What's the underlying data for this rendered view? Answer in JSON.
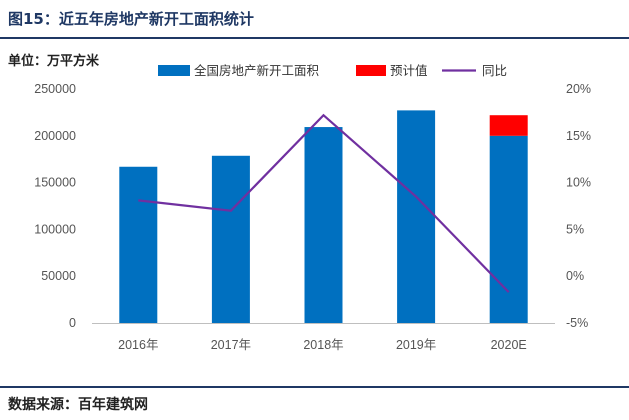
{
  "header": {
    "title": "图15：近五年房地产新开工面积统计"
  },
  "unit_label": "单位：万平方米",
  "source_label": "数据来源：百年建筑网",
  "colors": {
    "bar": "#0070c0",
    "estimate": "#ff0000",
    "line": "#7030a0",
    "title": "#1f3864"
  },
  "chart_data": {
    "type": "bar",
    "categories": [
      "2016年",
      "2017年",
      "2018年",
      "2019年",
      "2020E"
    ],
    "series": [
      {
        "name": "全国房地产新开工面积",
        "type": "bar",
        "axis": "left",
        "values": [
          166928,
          178654,
          209342,
          227154,
          200000
        ]
      },
      {
        "name": "预计值",
        "type": "bar",
        "axis": "left",
        "stacked_on": "全国房地产新开工面积",
        "values": [
          0,
          0,
          0,
          0,
          22000
        ]
      },
      {
        "name": "同比",
        "type": "line",
        "axis": "right",
        "values": [
          8.1,
          7.0,
          17.2,
          8.5,
          -1.7
        ]
      }
    ],
    "y_left": {
      "ylim": [
        0,
        250000
      ],
      "ticks": [
        "0",
        "50000",
        "100000",
        "150000",
        "200000",
        "250000"
      ]
    },
    "y_right": {
      "ylim": [
        -5,
        20
      ],
      "ticks": [
        "-5%",
        "0%",
        "5%",
        "10%",
        "15%",
        "20%"
      ]
    },
    "legend_position": "top",
    "grid": false
  }
}
